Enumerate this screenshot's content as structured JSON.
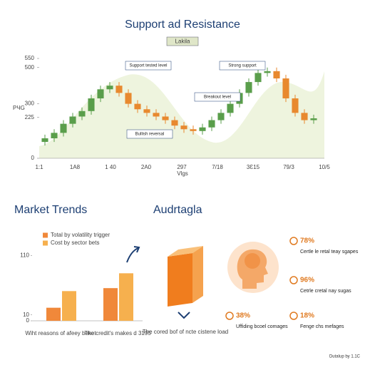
{
  "chart_data": [
    {
      "type": "candlestick",
      "title": "Support ad Resistance",
      "subtitle": "Lakila",
      "ylabel": "PЧG",
      "xlabel": "Vlgs",
      "x_labels": [
        "1:1",
        "1A8",
        "1 40",
        "2A0",
        "297",
        "7/18",
        "3Ɛ15",
        "79/3",
        "10/5"
      ],
      "open": [
        90,
        110,
        140,
        190,
        230,
        260,
        330,
        380,
        400,
        360,
        300,
        270,
        250,
        230,
        210,
        180,
        160,
        150,
        170,
        210,
        250,
        300,
        360,
        420,
        470,
        480,
        440,
        330,
        250,
        210
      ],
      "high": [
        130,
        160,
        210,
        250,
        280,
        350,
        400,
        420,
        420,
        380,
        320,
        290,
        270,
        250,
        230,
        200,
        180,
        190,
        230,
        270,
        320,
        380,
        440,
        490,
        500,
        500,
        460,
        350,
        270,
        240
      ],
      "low": [
        70,
        90,
        120,
        170,
        210,
        240,
        310,
        360,
        340,
        280,
        250,
        230,
        210,
        190,
        160,
        140,
        130,
        130,
        150,
        190,
        230,
        280,
        340,
        400,
        450,
        420,
        310,
        230,
        190,
        190
      ],
      "close": [
        110,
        140,
        190,
        230,
        260,
        330,
        380,
        400,
        360,
        300,
        270,
        250,
        230,
        210,
        180,
        160,
        150,
        170,
        210,
        250,
        300,
        360,
        420,
        470,
        480,
        440,
        330,
        250,
        210,
        220
      ],
      "up_color": "#5a9e4b",
      "down_color": "#e8892f",
      "ylim": [
        0,
        550
      ],
      "yticks": [
        0,
        225,
        300,
        500,
        550
      ],
      "annotations": [
        "Support tested level",
        "Bullish reversal",
        "Breakout level",
        "Strong support"
      ]
    },
    {
      "type": "bar",
      "title": "Market Trends",
      "categories": [
        "Wiht reasons of afeey beket",
        "The credit's makes d 3195"
      ],
      "series": [
        {
          "name": "Total by volatility trigger",
          "color": "#f0883a",
          "values": [
            22,
            55
          ]
        },
        {
          "name": "Cost by sector bets",
          "color": "#f6b04e",
          "values": [
            50,
            80
          ]
        }
      ],
      "ylim": [
        0,
        120
      ],
      "yticks": [
        0,
        10,
        110
      ]
    }
  ],
  "insights": {
    "title": "Audrtagla",
    "box_caption": "The cored bof of ncte cistene load",
    "stats": [
      {
        "value": "78%",
        "caption": "Certle le retal teay sgapes"
      },
      {
        "value": "96%",
        "caption": "Cetrle cretal nay sugas"
      },
      {
        "value": "38%",
        "caption": "Uffiding bcoel comages"
      },
      {
        "value": "18%",
        "caption": "Fenge chs mefages"
      }
    ]
  },
  "footer": "Dutalup by 1.1C"
}
